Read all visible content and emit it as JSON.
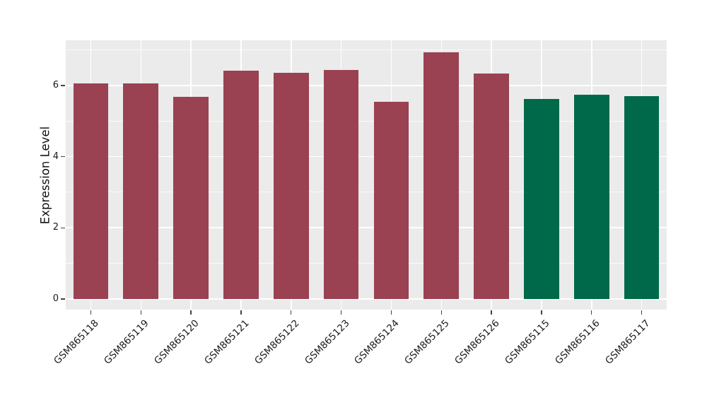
{
  "figure": {
    "background": "#FFFFFF",
    "panel_background": "#EBEBEB",
    "gridline_color": "#FFFFFF",
    "text_color": "#1A1A1A"
  },
  "chart_data": {
    "type": "bar",
    "title": "",
    "xlabel": "",
    "ylabel": "Expression Level",
    "categories": [
      "GSM865118",
      "GSM865119",
      "GSM865120",
      "GSM865121",
      "GSM865122",
      "GSM865123",
      "GSM865124",
      "GSM865125",
      "GSM865126",
      "GSM865115",
      "GSM865116",
      "GSM865117"
    ],
    "values": [
      6.05,
      6.05,
      5.69,
      6.42,
      6.35,
      6.44,
      5.55,
      6.93,
      6.33,
      5.62,
      5.74,
      5.71
    ],
    "bar_colors": [
      "#9A4252",
      "#9A4252",
      "#9A4252",
      "#9A4252",
      "#9A4252",
      "#9A4252",
      "#9A4252",
      "#9A4252",
      "#9A4252",
      "#00694A",
      "#00694A",
      "#00694A"
    ],
    "color_groups": [
      {
        "color": "#9A4252",
        "count": 9
      },
      {
        "color": "#00694A",
        "count": 3
      }
    ],
    "ylim": [
      -0.3,
      7.27
    ],
    "yticks": [
      0,
      2,
      4,
      6
    ],
    "yticks_minor": [
      1,
      3,
      5,
      7
    ],
    "grid": "on",
    "legend_position": "none",
    "x_tick_rotation": 45,
    "bar_width_fraction": 0.7
  }
}
